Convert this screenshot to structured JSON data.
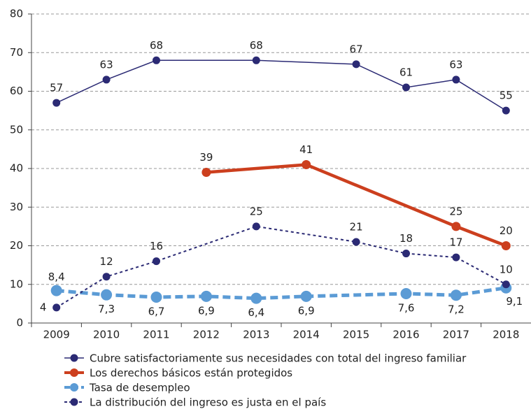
{
  "chart_data": {
    "type": "line",
    "xlim": [
      2008.5,
      2018.5
    ],
    "xticks": [
      2009,
      2010,
      2011,
      2012,
      2013,
      2014,
      2015,
      2016,
      2017,
      2018
    ],
    "ylim": [
      0,
      80
    ],
    "yticks": [
      0,
      10,
      20,
      30,
      40,
      50,
      60,
      70,
      80
    ],
    "grid": true,
    "legend": "bottom",
    "series": [
      {
        "name": "Cubre satisfactoriamente sus necesidades con total del ingreso familiar",
        "color": "#2b2a74",
        "line_style": "solid",
        "x": [
          2009,
          2010,
          2011,
          2013,
          2015,
          2016,
          2017,
          2018
        ],
        "values": [
          57,
          63,
          68,
          68,
          67,
          61,
          63,
          55
        ]
      },
      {
        "name": "Los derechos básicos están protegidos",
        "color": "#cc3f1e",
        "line_style": "solid",
        "x": [
          2012,
          2014,
          2017,
          2018
        ],
        "values": [
          39,
          41,
          25,
          20
        ]
      },
      {
        "name": "Tasa de desempleo",
        "color": "#5b9bd5",
        "line_style": "dashed",
        "x": [
          2009,
          2010,
          2011,
          2012,
          2013,
          2014,
          2016,
          2017,
          2018
        ],
        "values": [
          8.4,
          7.3,
          6.7,
          6.9,
          6.4,
          6.9,
          7.6,
          7.2,
          9.1
        ],
        "value_labels": [
          "8,4",
          "7,3",
          "6,7",
          "6,9",
          "6,4",
          "6,9",
          "7,6",
          "7,2",
          "9,1"
        ]
      },
      {
        "name": "La distribución del ingreso es justa en el país",
        "color": "#2b2a74",
        "line_style": "dotted",
        "x": [
          2009,
          2010,
          2011,
          2013,
          2015,
          2016,
          2017,
          2018
        ],
        "values": [
          4,
          12,
          16,
          25,
          21,
          18,
          17,
          10
        ]
      }
    ]
  }
}
